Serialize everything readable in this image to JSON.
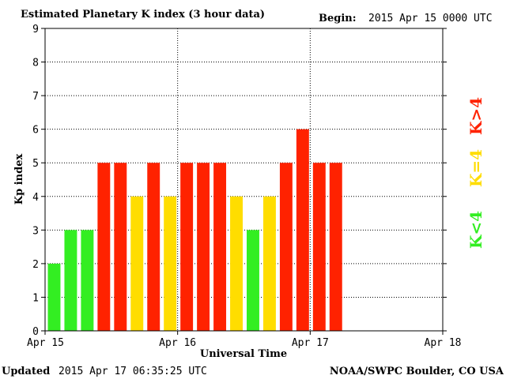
{
  "header": {
    "title": "Estimated Planetary K index (3 hour data)",
    "begin_label": "Begin:",
    "begin_value": "2015 Apr 15 0000 UTC"
  },
  "footer": {
    "updated_label": "Updated",
    "updated_value": "2015 Apr 17 06:35:25 UTC",
    "source": "NOAA/SWPC Boulder, CO USA"
  },
  "legend": {
    "items": [
      {
        "label": "K<4",
        "color": "#33ee22"
      },
      {
        "label": "K=4",
        "color": "#ffdd00"
      },
      {
        "label": "K>4",
        "color": "#ff2200"
      }
    ]
  },
  "chart_data": {
    "type": "bar",
    "title": "Estimated Planetary K index (3 hour data)",
    "xlabel": "Universal Time",
    "ylabel": "Kp index",
    "ylim": [
      0,
      9
    ],
    "yticks": [
      0,
      1,
      2,
      3,
      4,
      5,
      6,
      7,
      8,
      9
    ],
    "xticks": [
      "Apr 15",
      "Apr 16",
      "Apr 17",
      "Apr 18"
    ],
    "x_range_hours": [
      0,
      72
    ],
    "interval_hours": 3,
    "grid": true,
    "legend_placement": "right",
    "colors": {
      "low": "#33ee22",
      "equal4": "#ffdd00",
      "high": "#ff2200"
    },
    "values": [
      2,
      3,
      3,
      5,
      5,
      4,
      5,
      4,
      5,
      5,
      5,
      4,
      3,
      4,
      5,
      6,
      5,
      5
    ]
  }
}
